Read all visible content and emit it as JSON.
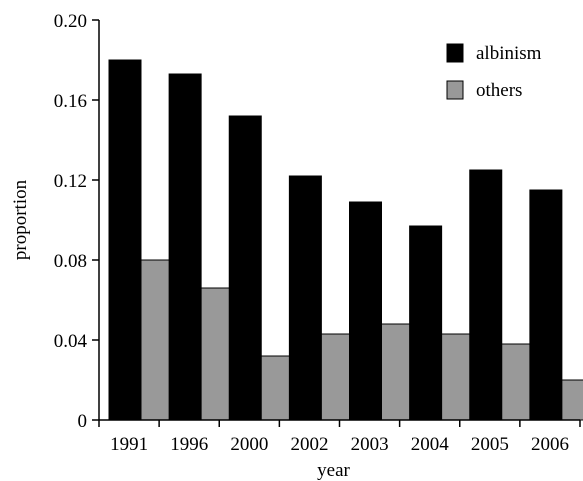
{
  "chart_data": {
    "type": "bar",
    "categories": [
      "1991",
      "1996",
      "2000",
      "2002",
      "2003",
      "2004",
      "2005",
      "2006"
    ],
    "series": [
      {
        "name": "albinism",
        "color": "#000000",
        "values": [
          0.18,
          0.173,
          0.152,
          0.122,
          0.109,
          0.097,
          0.125,
          0.115
        ]
      },
      {
        "name": "others",
        "color": "#999999",
        "values": [
          0.08,
          0.066,
          0.032,
          0.043,
          0.048,
          0.043,
          0.038,
          0.02
        ]
      }
    ],
    "xlabel": "year",
    "ylabel": "proportion",
    "ylim": [
      0,
      0.2
    ],
    "yticks": [
      0,
      0.04,
      0.08,
      0.12,
      0.16,
      0.2
    ],
    "ytick_labels": [
      "0",
      "0.04",
      "0.08",
      "0.12",
      "0.16",
      "0.20"
    ],
    "grid": false,
    "legend_position": "top-right"
  }
}
